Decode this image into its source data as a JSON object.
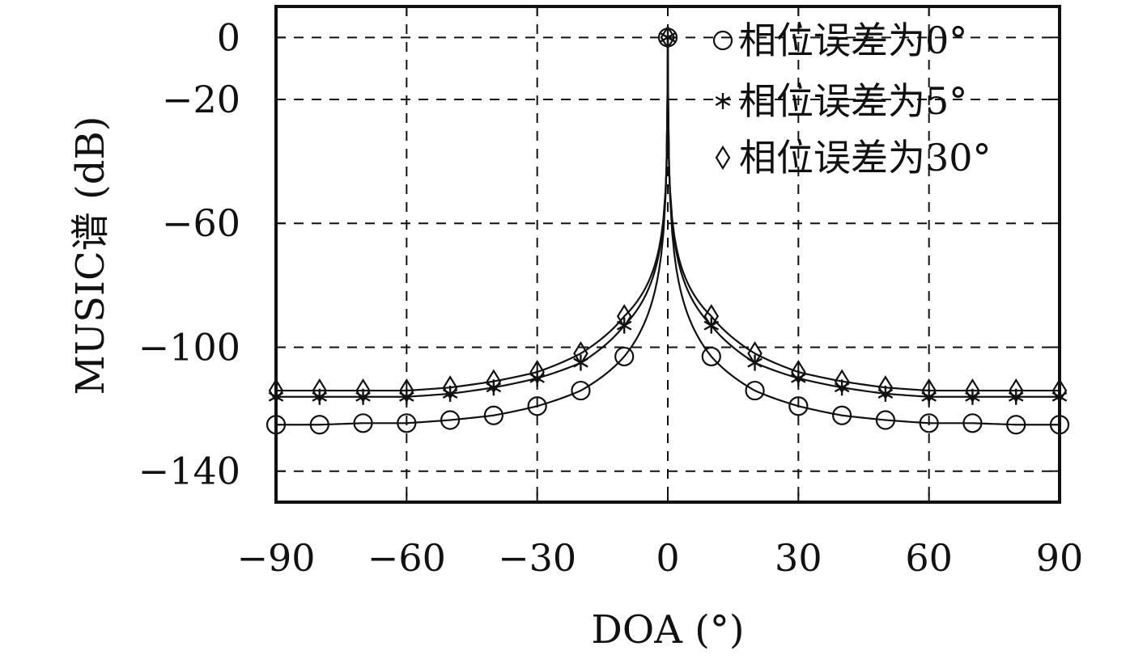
{
  "chart_data": {
    "type": "line",
    "xlabel": "DOA (°)",
    "ylabel": "MUSIC谱 (dB)",
    "xlim": [
      -90,
      90
    ],
    "ylim": [
      -150,
      10
    ],
    "xticks": [
      -90,
      -60,
      -30,
      0,
      30,
      60,
      90
    ],
    "yticks": [
      0,
      -20,
      -60,
      -100,
      -140
    ],
    "xtick_labels": [
      "−90",
      "−60",
      "−30",
      "0",
      "30",
      "60",
      "90"
    ],
    "ytick_labels": [
      "0",
      "−20",
      "−60",
      "−100",
      "−140"
    ],
    "grid": true,
    "legend_position": "top-right",
    "series": [
      {
        "name": "相位误差为0°",
        "marker": "circle",
        "x": [
          -90,
          -80,
          -70,
          -60,
          -50,
          -40,
          -30,
          -20,
          -10,
          0,
          10,
          20,
          30,
          40,
          50,
          60,
          70,
          80,
          90
        ],
        "values": [
          -125,
          -125,
          -124.5,
          -124.5,
          -123.5,
          -122,
          -119,
          -114,
          -103,
          0,
          -103,
          -114,
          -119,
          -122,
          -123.5,
          -124.5,
          -124.5,
          -125,
          -125
        ]
      },
      {
        "name": "相位误差为5°",
        "marker": "asterisk",
        "x": [
          -90,
          -80,
          -70,
          -60,
          -50,
          -40,
          -30,
          -20,
          -10,
          0,
          10,
          20,
          30,
          40,
          50,
          60,
          70,
          80,
          90
        ],
        "values": [
          -116,
          -116,
          -116,
          -116,
          -115,
          -113,
          -110,
          -105,
          -93,
          0,
          -93,
          -105,
          -110,
          -113,
          -115,
          -116,
          -116,
          -116,
          -116
        ]
      },
      {
        "name": "相位误差为30°",
        "marker": "diamond",
        "x": [
          -90,
          -80,
          -70,
          -60,
          -50,
          -40,
          -30,
          -20,
          -10,
          0,
          10,
          20,
          30,
          40,
          50,
          60,
          70,
          80,
          90
        ],
        "values": [
          -114,
          -114,
          -114,
          -114,
          -113,
          -111,
          -108,
          -102,
          -90,
          0,
          -90,
          -102,
          -108,
          -111,
          -113,
          -114,
          -114,
          -114,
          -114
        ]
      }
    ]
  }
}
